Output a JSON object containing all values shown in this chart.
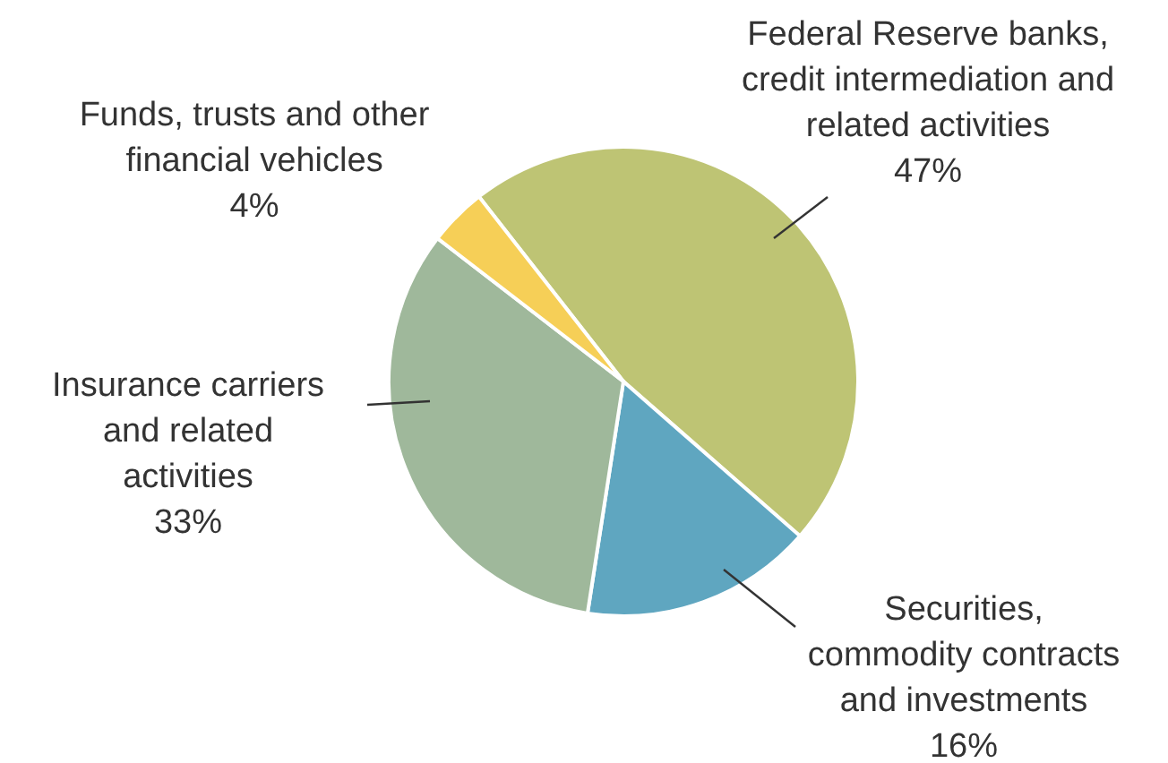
{
  "chart_data": {
    "type": "pie",
    "categories": [
      "Federal Reserve banks, credit intermediation and related activities",
      "Securities, commodity contracts and investments",
      "Insurance carriers and related activities",
      "Funds, trusts and other financial vehicles"
    ],
    "values": [
      47,
      16,
      33,
      4
    ],
    "colors": [
      "#bec474",
      "#5fa6c0",
      "#9fb89b",
      "#f6cf57"
    ],
    "value_labels": [
      "47%",
      "16%",
      "33%",
      "4%"
    ]
  }
}
